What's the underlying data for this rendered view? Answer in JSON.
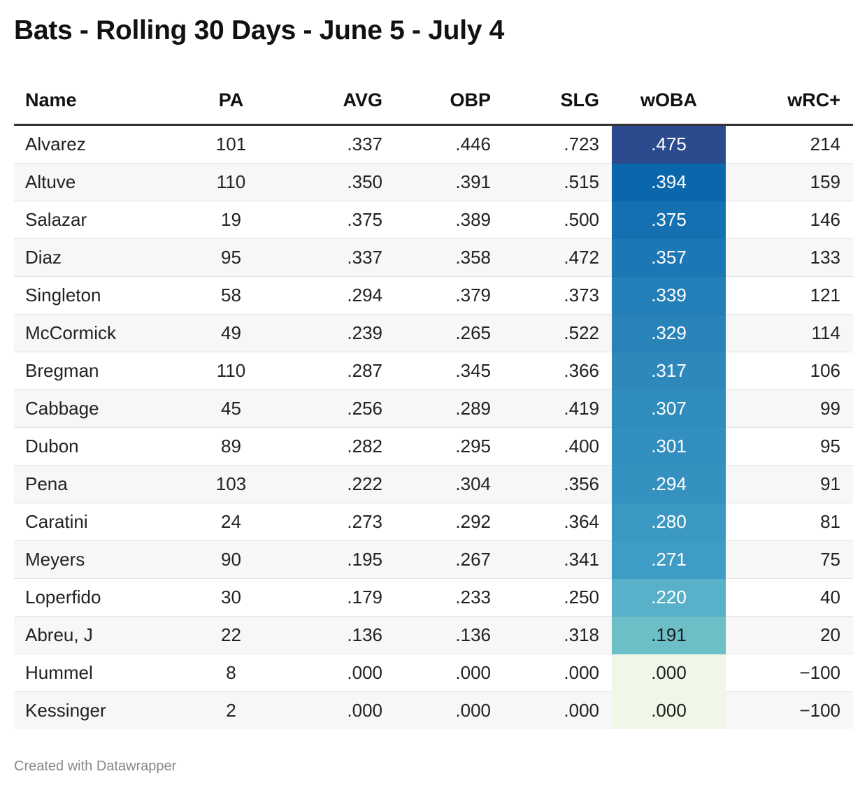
{
  "title": "Bats - Rolling 30 Days - June 5 - July 4",
  "footer": "Created with Datawrapper",
  "colors": {
    "header_rule": "#333333",
    "row_stripe": "#f7f7f7",
    "woba_scale": [
      "#f0f7e6",
      "#6dbfc6",
      "#2d8bbf",
      "#0a67ab",
      "#2a4a8e"
    ]
  },
  "chart_data": {
    "type": "table",
    "columns": [
      "Name",
      "PA",
      "AVG",
      "OBP",
      "SLG",
      "wOBA",
      "wRC+"
    ],
    "heatmap_column": "wOBA",
    "rows": [
      {
        "name": "Alvarez",
        "pa": "101",
        "avg": ".337",
        "obp": ".446",
        "slg": ".723",
        "woba": ".475",
        "wrc": "214",
        "woba_color": "#2b4b8e",
        "woba_text": "#ffffff"
      },
      {
        "name": "Altuve",
        "pa": "110",
        "avg": ".350",
        "obp": ".391",
        "slg": ".515",
        "woba": ".394",
        "wrc": "159",
        "woba_color": "#0b67ac",
        "woba_text": "#ffffff"
      },
      {
        "name": "Salazar",
        "pa": "19",
        "avg": ".375",
        "obp": ".389",
        "slg": ".500",
        "woba": ".375",
        "wrc": "146",
        "woba_color": "#1470b0",
        "woba_text": "#ffffff"
      },
      {
        "name": "Diaz",
        "pa": "95",
        "avg": ".337",
        "obp": ".358",
        "slg": ".472",
        "woba": ".357",
        "wrc": "133",
        "woba_color": "#1c78b4",
        "woba_text": "#ffffff"
      },
      {
        "name": "Singleton",
        "pa": "58",
        "avg": ".294",
        "obp": ".379",
        "slg": ".373",
        "woba": ".339",
        "wrc": "121",
        "woba_color": "#247fb8",
        "woba_text": "#ffffff"
      },
      {
        "name": "McCormick",
        "pa": "49",
        "avg": ".239",
        "obp": ".265",
        "slg": ".522",
        "woba": ".329",
        "wrc": "114",
        "woba_color": "#2983b9",
        "woba_text": "#ffffff"
      },
      {
        "name": "Bregman",
        "pa": "110",
        "avg": ".287",
        "obp": ".345",
        "slg": ".366",
        "woba": ".317",
        "wrc": "106",
        "woba_color": "#2e88bc",
        "woba_text": "#ffffff"
      },
      {
        "name": "Cabbage",
        "pa": "45",
        "avg": ".256",
        "obp": ".289",
        "slg": ".419",
        "woba": ".307",
        "wrc": "99",
        "woba_color": "#318cbe",
        "woba_text": "#ffffff"
      },
      {
        "name": "Dubon",
        "pa": "89",
        "avg": ".282",
        "obp": ".295",
        "slg": ".400",
        "woba": ".301",
        "wrc": "95",
        "woba_color": "#338fbf",
        "woba_text": "#ffffff"
      },
      {
        "name": "Pena",
        "pa": "103",
        "avg": ".222",
        "obp": ".304",
        "slg": ".356",
        "woba": ".294",
        "wrc": "91",
        "woba_color": "#3592c0",
        "woba_text": "#ffffff"
      },
      {
        "name": "Caratini",
        "pa": "24",
        "avg": ".273",
        "obp": ".292",
        "slg": ".364",
        "woba": ".280",
        "wrc": "81",
        "woba_color": "#3b98c2",
        "woba_text": "#ffffff"
      },
      {
        "name": "Meyers",
        "pa": "90",
        "avg": ".195",
        "obp": ".267",
        "slg": ".341",
        "woba": ".271",
        "wrc": "75",
        "woba_color": "#3f9cc4",
        "woba_text": "#ffffff"
      },
      {
        "name": "Loperfido",
        "pa": "30",
        "avg": ".179",
        "obp": ".233",
        "slg": ".250",
        "woba": ".220",
        "wrc": "40",
        "woba_color": "#58b1c8",
        "woba_text": "#ffffff"
      },
      {
        "name": "Abreu, J",
        "pa": "22",
        "avg": ".136",
        "obp": ".136",
        "slg": ".318",
        "woba": ".191",
        "wrc": "20",
        "woba_color": "#6cbec7",
        "woba_text": "#1d1d1d"
      },
      {
        "name": "Hummel",
        "pa": "8",
        "avg": ".000",
        "obp": ".000",
        "slg": ".000",
        "woba": ".000",
        "wrc": "−100",
        "woba_color": "#f0f7e6",
        "woba_text": "#1d1d1d"
      },
      {
        "name": "Kessinger",
        "pa": "2",
        "avg": ".000",
        "obp": ".000",
        "slg": ".000",
        "woba": ".000",
        "wrc": "−100",
        "woba_color": "#f0f7e6",
        "woba_text": "#1d1d1d"
      }
    ]
  }
}
